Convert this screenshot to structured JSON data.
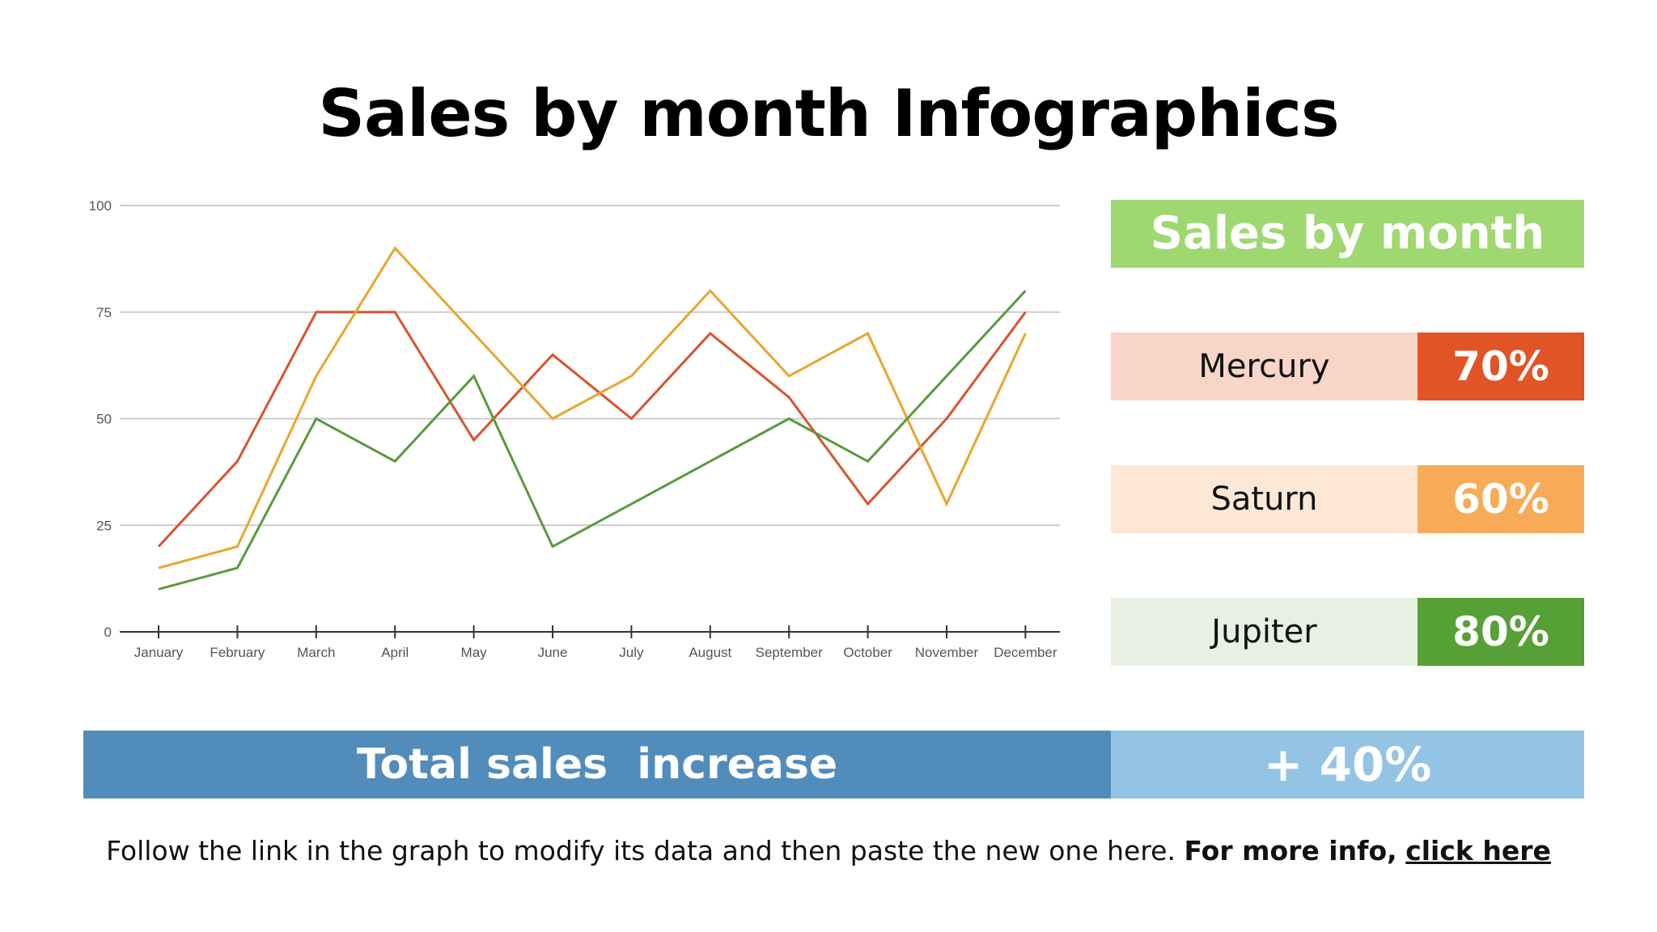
{
  "page": {
    "title": "Sales by month Infographics"
  },
  "chart_data": {
    "type": "line",
    "categories": [
      "January",
      "February",
      "March",
      "April",
      "May",
      "June",
      "July",
      "August",
      "September",
      "October",
      "November",
      "December"
    ],
    "ylim": [
      0,
      100
    ],
    "yticks": [
      0,
      25,
      50,
      75,
      100
    ],
    "grid": true,
    "legend": "none",
    "series": [
      {
        "color": "#d9532c",
        "values": [
          20,
          40,
          75,
          75,
          45,
          65,
          50,
          70,
          55,
          30,
          50,
          75
        ]
      },
      {
        "color": "#e8a52e",
        "values": [
          15,
          20,
          60,
          90,
          70,
          50,
          60,
          80,
          60,
          70,
          30,
          70
        ]
      },
      {
        "color": "#5a9a3c",
        "values": [
          10,
          15,
          50,
          40,
          60,
          20,
          30,
          40,
          50,
          40,
          60,
          80
        ]
      }
    ]
  },
  "panel": {
    "header": "Sales by month",
    "items": [
      {
        "name": "Mercury",
        "value": "70%",
        "light_color": "#f7d5c9",
        "dark_color": "#e15425"
      },
      {
        "name": "Saturn",
        "value": "60%",
        "light_color": "#fde8d6",
        "dark_color": "#f8ab57"
      },
      {
        "name": "Jupiter",
        "value": "80%",
        "light_color": "#e8f0e2",
        "dark_color": "#56a036"
      }
    ]
  },
  "total": {
    "label": "Total sales  increase",
    "value": "+ 40%"
  },
  "footer": {
    "text": "Follow the link in the graph to modify its data and then paste the new one here.",
    "bold_text": "For more info,",
    "link_text": "click here"
  }
}
